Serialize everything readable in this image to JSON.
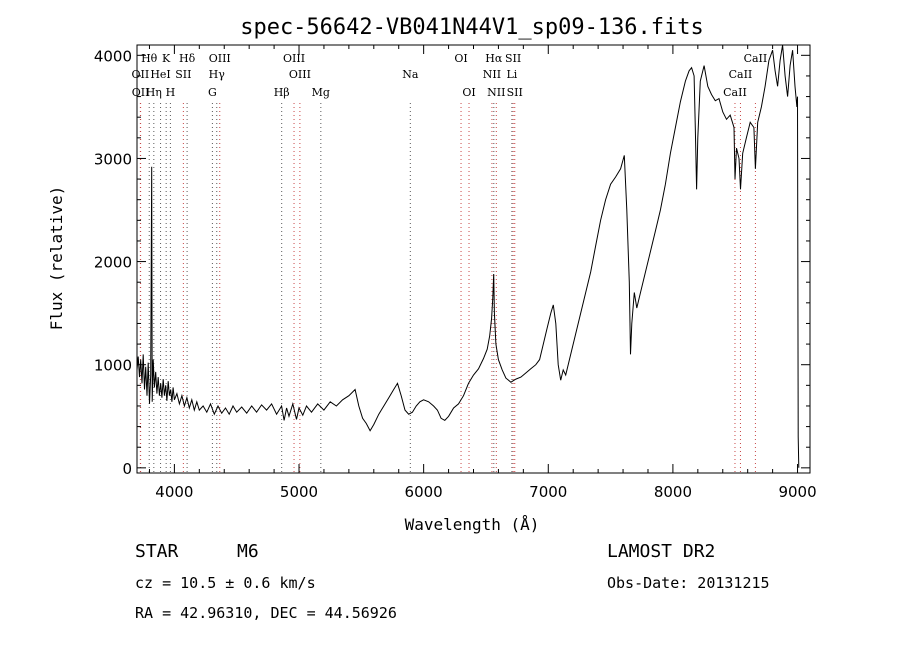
{
  "chart_data": {
    "type": "line",
    "title": "spec-56642-VB041N44V1_sp09-136.fits",
    "xlabel": "Wavelength (Å)",
    "ylabel": "Flux (relative)",
    "xlim": [
      3700,
      9100
    ],
    "ylim": [
      -50,
      4100
    ],
    "x_ticks": [
      4000,
      5000,
      6000,
      7000,
      8000,
      9000
    ],
    "y_ticks": [
      0,
      1000,
      2000,
      3000,
      4000
    ],
    "grid": false,
    "line_color": "#000000",
    "marker_color_blue": "#5a5a5a",
    "marker_color_red": "#c84646",
    "spectral_lines": [
      {
        "label": "Hθ",
        "wavelength": 3798,
        "row": 0,
        "color": "blue"
      },
      {
        "label": "K",
        "wavelength": 3934,
        "row": 0,
        "color": "blue"
      },
      {
        "label": "Hδ",
        "wavelength": 4102,
        "row": 0,
        "color": "blue"
      },
      {
        "label": "OIII",
        "wavelength": 4364,
        "row": 0,
        "color": "red"
      },
      {
        "label": "OIII",
        "wavelength": 4960,
        "row": 0,
        "color": "red"
      },
      {
        "label": "OI",
        "wavelength": 6300,
        "row": 0,
        "color": "red"
      },
      {
        "label": "Hα",
        "wavelength": 6563,
        "row": 0,
        "color": "blue"
      },
      {
        "label": "SII",
        "wavelength": 6718,
        "row": 0,
        "color": "red"
      },
      {
        "label": "CaII",
        "wavelength": 8662,
        "row": 0,
        "color": "red"
      },
      {
        "label": "OII",
        "wavelength": 3727,
        "row": 1,
        "color": "red"
      },
      {
        "label": "HeI",
        "wavelength": 3889,
        "row": 1,
        "color": "blue"
      },
      {
        "label": "SII",
        "wavelength": 4072,
        "row": 1,
        "color": "red"
      },
      {
        "label": "Hγ",
        "wavelength": 4340,
        "row": 1,
        "color": "blue"
      },
      {
        "label": "OIII",
        "wavelength": 5007,
        "row": 1,
        "color": "red"
      },
      {
        "label": "Na",
        "wavelength": 5893,
        "row": 1,
        "color": "blue"
      },
      {
        "label": "NII",
        "wavelength": 6548,
        "row": 1,
        "color": "red"
      },
      {
        "label": "Li",
        "wavelength": 6708,
        "row": 1,
        "color": "blue"
      },
      {
        "label": "CaII",
        "wavelength": 8542,
        "row": 1,
        "color": "red"
      },
      {
        "label": "OII",
        "wavelength": 3729,
        "row": 2,
        "color": "red"
      },
      {
        "label": "Hη",
        "wavelength": 3835,
        "row": 2,
        "color": "blue"
      },
      {
        "label": "H",
        "wavelength": 3968,
        "row": 2,
        "color": "blue"
      },
      {
        "label": "G",
        "wavelength": 4305,
        "row": 2,
        "color": "blue"
      },
      {
        "label": "Hβ",
        "wavelength": 4861,
        "row": 2,
        "color": "blue"
      },
      {
        "label": "Mg",
        "wavelength": 5175,
        "row": 2,
        "color": "blue"
      },
      {
        "label": "OI",
        "wavelength": 6364,
        "row": 2,
        "color": "red"
      },
      {
        "label": "NII",
        "wavelength": 6583,
        "row": 2,
        "color": "red"
      },
      {
        "label": "SII",
        "wavelength": 6731,
        "row": 2,
        "color": "red"
      },
      {
        "label": "CaII",
        "wavelength": 8498,
        "row": 2,
        "color": "red"
      }
    ],
    "spectrum": [
      [
        3700,
        950
      ],
      [
        3710,
        1080
      ],
      [
        3720,
        880
      ],
      [
        3730,
        1050
      ],
      [
        3740,
        820
      ],
      [
        3750,
        1100
      ],
      [
        3760,
        760
      ],
      [
        3770,
        980
      ],
      [
        3780,
        700
      ],
      [
        3790,
        1020
      ],
      [
        3800,
        620
      ],
      [
        3810,
        900
      ],
      [
        3818,
        2920
      ],
      [
        3822,
        640
      ],
      [
        3830,
        1050
      ],
      [
        3840,
        780
      ],
      [
        3850,
        930
      ],
      [
        3860,
        720
      ],
      [
        3870,
        880
      ],
      [
        3880,
        700
      ],
      [
        3890,
        820
      ],
      [
        3900,
        680
      ],
      [
        3910,
        860
      ],
      [
        3920,
        700
      ],
      [
        3930,
        800
      ],
      [
        3940,
        650
      ],
      [
        3950,
        840
      ],
      [
        3960,
        700
      ],
      [
        3970,
        760
      ],
      [
        3980,
        640
      ],
      [
        3990,
        780
      ],
      [
        4000,
        660
      ],
      [
        4020,
        720
      ],
      [
        4040,
        620
      ],
      [
        4060,
        700
      ],
      [
        4080,
        600
      ],
      [
        4100,
        680
      ],
      [
        4120,
        580
      ],
      [
        4140,
        660
      ],
      [
        4160,
        560
      ],
      [
        4180,
        640
      ],
      [
        4200,
        560
      ],
      [
        4230,
        600
      ],
      [
        4260,
        540
      ],
      [
        4290,
        620
      ],
      [
        4320,
        520
      ],
      [
        4350,
        600
      ],
      [
        4380,
        530
      ],
      [
        4410,
        580
      ],
      [
        4440,
        520
      ],
      [
        4470,
        600
      ],
      [
        4500,
        540
      ],
      [
        4540,
        590
      ],
      [
        4580,
        530
      ],
      [
        4620,
        600
      ],
      [
        4660,
        540
      ],
      [
        4700,
        610
      ],
      [
        4740,
        560
      ],
      [
        4780,
        620
      ],
      [
        4820,
        520
      ],
      [
        4860,
        600
      ],
      [
        4880,
        460
      ],
      [
        4900,
        580
      ],
      [
        4920,
        500
      ],
      [
        4950,
        620
      ],
      [
        4980,
        470
      ],
      [
        5000,
        580
      ],
      [
        5030,
        510
      ],
      [
        5060,
        600
      ],
      [
        5100,
        540
      ],
      [
        5150,
        620
      ],
      [
        5200,
        560
      ],
      [
        5250,
        640
      ],
      [
        5300,
        600
      ],
      [
        5350,
        660
      ],
      [
        5400,
        700
      ],
      [
        5450,
        760
      ],
      [
        5480,
        600
      ],
      [
        5510,
        480
      ],
      [
        5540,
        430
      ],
      [
        5570,
        360
      ],
      [
        5600,
        420
      ],
      [
        5640,
        520
      ],
      [
        5680,
        600
      ],
      [
        5720,
        680
      ],
      [
        5760,
        760
      ],
      [
        5790,
        820
      ],
      [
        5820,
        700
      ],
      [
        5850,
        560
      ],
      [
        5880,
        520
      ],
      [
        5910,
        540
      ],
      [
        5940,
        600
      ],
      [
        5970,
        640
      ],
      [
        6000,
        660
      ],
      [
        6040,
        640
      ],
      [
        6080,
        600
      ],
      [
        6110,
        560
      ],
      [
        6140,
        480
      ],
      [
        6170,
        460
      ],
      [
        6200,
        500
      ],
      [
        6240,
        580
      ],
      [
        6280,
        620
      ],
      [
        6320,
        700
      ],
      [
        6360,
        820
      ],
      [
        6400,
        900
      ],
      [
        6440,
        960
      ],
      [
        6480,
        1060
      ],
      [
        6510,
        1150
      ],
      [
        6530,
        1280
      ],
      [
        6545,
        1450
      ],
      [
        6555,
        1650
      ],
      [
        6562,
        1880
      ],
      [
        6568,
        1500
      ],
      [
        6580,
        1200
      ],
      [
        6600,
        1050
      ],
      [
        6630,
        950
      ],
      [
        6660,
        870
      ],
      [
        6700,
        830
      ],
      [
        6740,
        860
      ],
      [
        6780,
        880
      ],
      [
        6820,
        920
      ],
      [
        6860,
        960
      ],
      [
        6900,
        1000
      ],
      [
        6930,
        1050
      ],
      [
        6960,
        1200
      ],
      [
        6990,
        1350
      ],
      [
        7020,
        1500
      ],
      [
        7040,
        1580
      ],
      [
        7060,
        1400
      ],
      [
        7080,
        1000
      ],
      [
        7100,
        850
      ],
      [
        7120,
        950
      ],
      [
        7140,
        900
      ],
      [
        7160,
        1000
      ],
      [
        7180,
        1100
      ],
      [
        7220,
        1300
      ],
      [
        7260,
        1500
      ],
      [
        7300,
        1700
      ],
      [
        7340,
        1900
      ],
      [
        7380,
        2150
      ],
      [
        7420,
        2400
      ],
      [
        7460,
        2600
      ],
      [
        7500,
        2750
      ],
      [
        7540,
        2820
      ],
      [
        7580,
        2900
      ],
      [
        7610,
        3030
      ],
      [
        7630,
        2500
      ],
      [
        7650,
        1800
      ],
      [
        7660,
        1100
      ],
      [
        7670,
        1400
      ],
      [
        7690,
        1700
      ],
      [
        7710,
        1550
      ],
      [
        7740,
        1700
      ],
      [
        7780,
        1900
      ],
      [
        7820,
        2100
      ],
      [
        7860,
        2300
      ],
      [
        7900,
        2500
      ],
      [
        7940,
        2750
      ],
      [
        7980,
        3050
      ],
      [
        8020,
        3300
      ],
      [
        8060,
        3550
      ],
      [
        8100,
        3750
      ],
      [
        8130,
        3850
      ],
      [
        8150,
        3880
      ],
      [
        8170,
        3800
      ],
      [
        8180,
        3300
      ],
      [
        8190,
        2700
      ],
      [
        8200,
        3200
      ],
      [
        8220,
        3750
      ],
      [
        8250,
        3900
      ],
      [
        8280,
        3700
      ],
      [
        8310,
        3620
      ],
      [
        8340,
        3560
      ],
      [
        8370,
        3580
      ],
      [
        8400,
        3450
      ],
      [
        8430,
        3380
      ],
      [
        8460,
        3420
      ],
      [
        8490,
        3300
      ],
      [
        8498,
        2800
      ],
      [
        8510,
        3100
      ],
      [
        8530,
        3000
      ],
      [
        8542,
        2700
      ],
      [
        8560,
        3050
      ],
      [
        8590,
        3200
      ],
      [
        8620,
        3350
      ],
      [
        8650,
        3300
      ],
      [
        8662,
        2900
      ],
      [
        8680,
        3350
      ],
      [
        8710,
        3500
      ],
      [
        8740,
        3700
      ],
      [
        8770,
        3950
      ],
      [
        8800,
        4050
      ],
      [
        8820,
        3850
      ],
      [
        8840,
        3700
      ],
      [
        8860,
        3950
      ],
      [
        8880,
        4150
      ],
      [
        8900,
        3800
      ],
      [
        8920,
        3600
      ],
      [
        8940,
        3900
      ],
      [
        8960,
        4050
      ],
      [
        8980,
        3700
      ],
      [
        8995,
        3500
      ],
      [
        9000,
        3600
      ],
      [
        9005,
        300
      ],
      [
        9010,
        0
      ]
    ]
  },
  "info": {
    "object_type": "STAR",
    "subclass": "M6",
    "survey": "LAMOST DR2",
    "cz_line": "cz = 10.5 ± 0.6 km/s",
    "obs_date": "Obs-Date: 20131215",
    "coords": "RA =  42.96310, DEC =  44.56926"
  }
}
